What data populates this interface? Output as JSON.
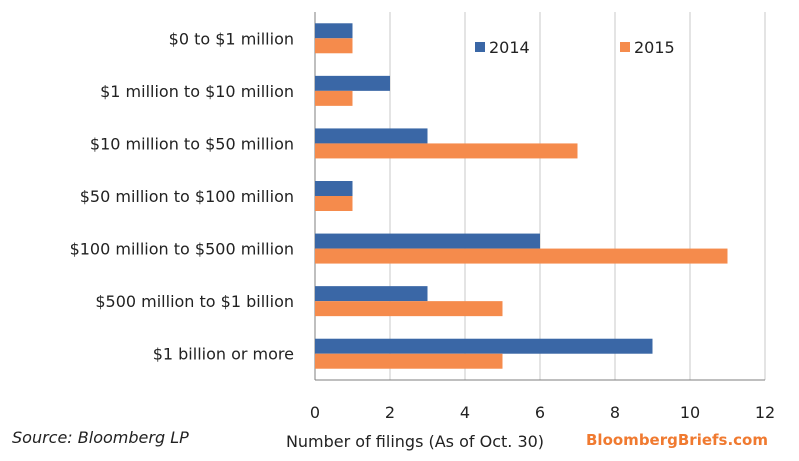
{
  "chart_data": {
    "type": "bar",
    "orientation": "horizontal",
    "categories": [
      "$0 to $1 million",
      "$1 million to $10 million",
      "$10 million to $50 million",
      "$50 million to $100 million",
      "$100 million to $500 million",
      "$500 million to $1 billion",
      "$1 billion or more"
    ],
    "series": [
      {
        "name": "2014",
        "color": "#3a67a6",
        "values": [
          1,
          2,
          3,
          1,
          6,
          3,
          9
        ]
      },
      {
        "name": "2015",
        "color": "#f58b4c",
        "values": [
          1,
          1,
          7,
          1,
          11,
          5,
          5
        ]
      }
    ],
    "xlabel": "Number of filings (As of Oct. 30)",
    "xlim": [
      0,
      12
    ],
    "xticks": [
      0,
      2,
      4,
      6,
      8,
      10,
      12
    ],
    "grid": true,
    "legend_position": "top-right"
  },
  "footer": {
    "source": "Source: Bloomberg LP",
    "brand": "BloombergBriefs.com"
  }
}
